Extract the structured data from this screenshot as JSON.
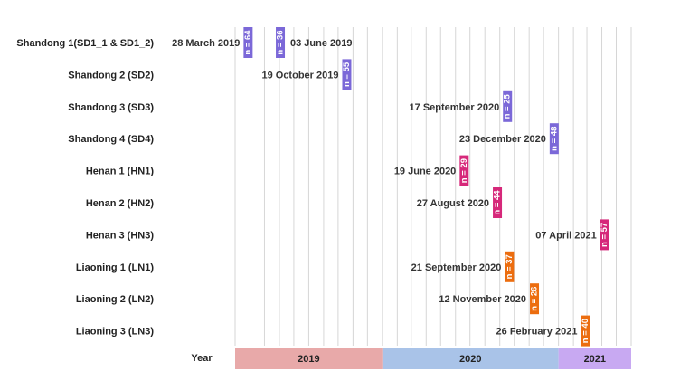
{
  "chart_data": {
    "type": "bar",
    "subtype": "timeline",
    "year_axis_label": "Year",
    "years": [
      {
        "label": "2019",
        "start": "2019-03-01",
        "end": "2019-12-31",
        "color": "#e8a9a9"
      },
      {
        "label": "2020",
        "start": "2020-01-01",
        "end": "2020-12-31",
        "color": "#a9c3e8"
      },
      {
        "label": "2021",
        "start": "2021-01-01",
        "end": "2021-05-31",
        "color": "#c8a9f2"
      }
    ],
    "rows": [
      {
        "name": "Shandong 1(SD1_1 & SD1_2)",
        "events": [
          {
            "date": "2019-03-28",
            "date_label": "28 March 2019",
            "n_label": "n = 64",
            "color": "#7b68d8",
            "label_side": "left"
          },
          {
            "date": "2019-06-03",
            "date_label": "03 June 2019",
            "n_label": "n = 36",
            "color": "#7b68d8",
            "label_side": "right"
          }
        ]
      },
      {
        "name": "Shandong 2 (SD2)",
        "events": [
          {
            "date": "2019-10-19",
            "date_label": "19 October 2019",
            "n_label": "n = 55",
            "color": "#7b68d8",
            "label_side": "left"
          }
        ]
      },
      {
        "name": "Shandong 3 (SD3)",
        "events": [
          {
            "date": "2020-09-17",
            "date_label": "17 September 2020",
            "n_label": "n = 25",
            "color": "#7b68d8",
            "label_side": "left"
          }
        ]
      },
      {
        "name": "Shandong 4 (SD4)",
        "events": [
          {
            "date": "2020-12-23",
            "date_label": "23 December 2020",
            "n_label": "n = 48",
            "color": "#7b68d8",
            "label_side": "left"
          }
        ]
      },
      {
        "name": "Henan 1 (HN1)",
        "events": [
          {
            "date": "2020-06-19",
            "date_label": "19 June 2020",
            "n_label": "n = 29",
            "color": "#d6287a",
            "label_side": "left"
          }
        ]
      },
      {
        "name": "Henan 2 (HN2)",
        "events": [
          {
            "date": "2020-08-27",
            "date_label": "27 August 2020",
            "n_label": "n = 44",
            "color": "#d6287a",
            "label_side": "left"
          }
        ]
      },
      {
        "name": "Henan 3 (HN3)",
        "events": [
          {
            "date": "2021-04-07",
            "date_label": "07 April 2021",
            "n_label": "n = 57",
            "color": "#d6287a",
            "label_side": "left"
          }
        ]
      },
      {
        "name": "Liaoning 1 (LN1)",
        "events": [
          {
            "date": "2020-09-21",
            "date_label": "21 September 2020",
            "n_label": "n = 37",
            "color": "#ec6d0f",
            "label_side": "left"
          }
        ]
      },
      {
        "name": "Liaoning 2 (LN2)",
        "events": [
          {
            "date": "2020-11-12",
            "date_label": "12 November 2020",
            "n_label": "n = 26",
            "color": "#ec6d0f",
            "label_side": "left"
          }
        ]
      },
      {
        "name": "Liaoning 3 (LN3)",
        "events": [
          {
            "date": "2021-02-26",
            "date_label": "26 February 2021",
            "n_label": "n = 40",
            "color": "#ec6d0f",
            "label_side": "left"
          }
        ]
      }
    ]
  }
}
